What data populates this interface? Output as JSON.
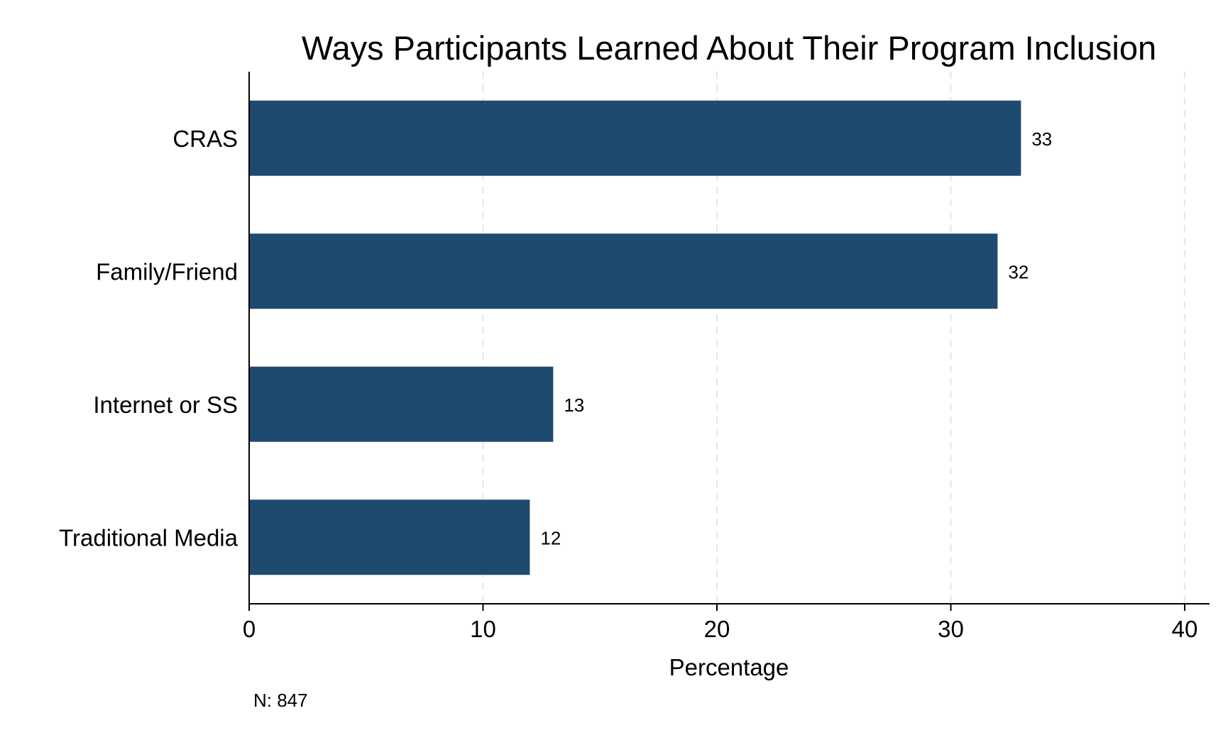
{
  "chart_data": {
    "type": "bar",
    "orientation": "horizontal",
    "title": "Ways Participants Learned About Their Program Inclusion",
    "categories": [
      "CRAS",
      "Family/Friend",
      "Internet or SS",
      "Traditional Media"
    ],
    "values": [
      33,
      32,
      13,
      12
    ],
    "value_labels": [
      "33",
      "32",
      "13",
      "12"
    ],
    "xlabel": "Percentage",
    "ylabel": "",
    "xlim": [
      0,
      41
    ],
    "xticks": [
      0,
      10,
      20,
      30,
      40
    ],
    "xtick_labels": [
      "0",
      "10",
      "20",
      "30",
      "40"
    ],
    "grid": "vertical dashed",
    "bar_color": "#1f4a70",
    "grid_color": "#e6e6e6",
    "note": "N: 847"
  }
}
